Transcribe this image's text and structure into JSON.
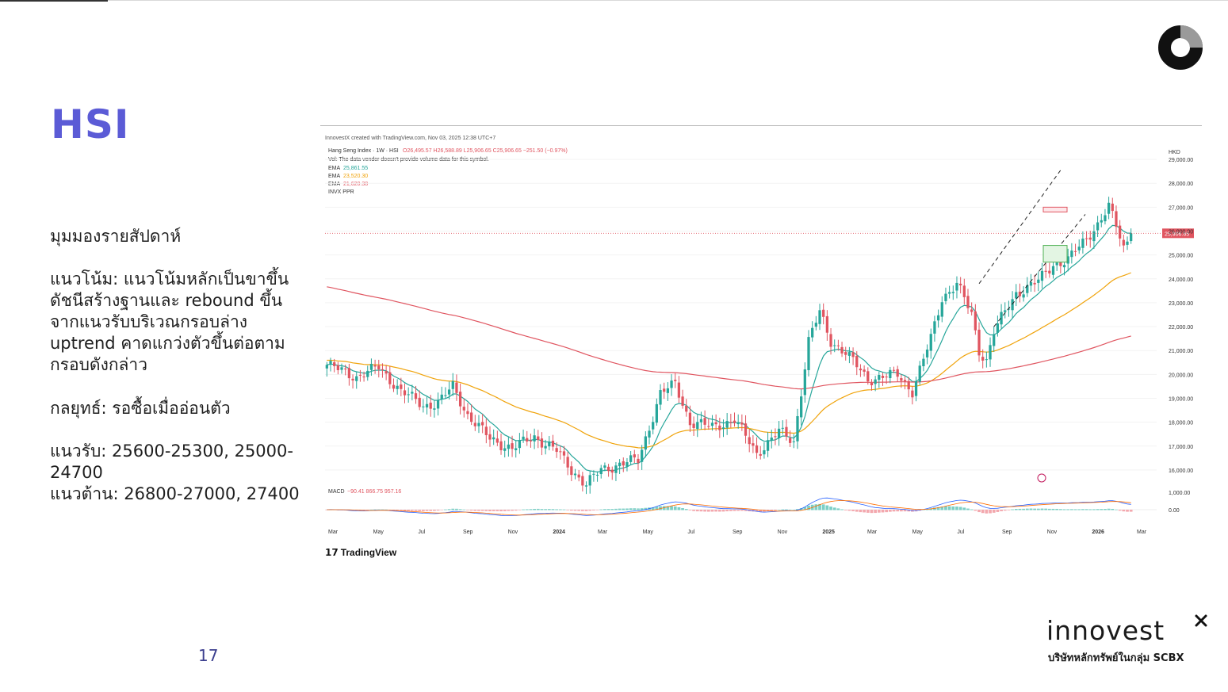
{
  "slide": {
    "title": "HSI",
    "page_number": "17",
    "sections": {
      "heading": "มุมมองรายสัปดาห์",
      "trend": "แนวโน้ม: แนวโน้มหลักเป็นขาขึ้น\nดัชนีสร้างฐานและ rebound ขึ้น\nจากแนวรับบริเวณกรอบล่าง\nuptrend คาดแกว่งตัวขึ้นต่อตาม\nกรอบดังกล่าว",
      "strategy": "กลยุทธ์: รอซื้อเมื่ออ่อนตัว",
      "levels": "แนวรับ: 25600-25300, 25000-\n24700\nแนวต้าน: 26800-27000, 27400"
    },
    "brand": {
      "name": "innovest",
      "tagline": "บริษัทหลักทรัพย์ในกลุ่ม SCBX"
    }
  },
  "chart_data": {
    "type": "candlestick",
    "source_line": "InnovestX created with TradingView.com, Nov 03, 2025 12:38 UTC+7",
    "legend": {
      "symbol_line": "Hang Seng Index · 1W · HSI",
      "ohlc_text": "O26,495.57  H26,588.89  L25,906.65  C25,906.65  −251.50 (−0.97%)",
      "volume_note": "Vol: The data vendor doesn't provide volume data for this symbol.",
      "ema_lines": [
        {
          "label": "EMA",
          "value": "25,861.55",
          "color": "#26a69a"
        },
        {
          "label": "EMA",
          "value": "23,520.30",
          "color": "#f0a30a"
        },
        {
          "label": "EMA",
          "value": "21,620.38",
          "color": "#e05560"
        }
      ],
      "indicator": "INVX PPR"
    },
    "currency": "HKD",
    "last_price_label": "25,906.65",
    "y_ticks": [
      "29,000.00",
      "28,000.00",
      "27,000.00",
      "26,000.00",
      "25,000.00",
      "24,000.00",
      "23,000.00",
      "22,000.00",
      "21,000.00",
      "20,000.00",
      "19,000.00",
      "18,000.00",
      "17,000.00",
      "16,000.00"
    ],
    "ylim": [
      15500,
      29500
    ],
    "x_ticks": [
      "Mar",
      "May",
      "Jul",
      "Sep",
      "Nov",
      "2024",
      "Mar",
      "May",
      "Jul",
      "Sep",
      "Nov",
      "2025",
      "Mar",
      "May",
      "Jul",
      "Sep",
      "Nov",
      "2026",
      "Mar"
    ],
    "macd": {
      "label": "MACD",
      "values_text": "−90.41  866.75  957.16",
      "y_ticks": [
        "1,000.00",
        "0.00"
      ]
    },
    "watermark": "TradingView",
    "colors": {
      "up": "#26a69a",
      "down": "#e05560",
      "ema_fast": "#26a69a",
      "ema_mid": "#f0a30a",
      "ema_slow": "#e05560",
      "channel": "#222222"
    },
    "anchors": [
      [
        0,
        20400
      ],
      [
        8,
        19900
      ],
      [
        14,
        20300
      ],
      [
        20,
        19300
      ],
      [
        26,
        18700
      ],
      [
        30,
        18800
      ],
      [
        34,
        19500
      ],
      [
        38,
        18300
      ],
      [
        44,
        17300
      ],
      [
        50,
        16900
      ],
      [
        56,
        17400
      ],
      [
        62,
        16800
      ],
      [
        66,
        16000
      ],
      [
        70,
        15400
      ],
      [
        74,
        16000
      ],
      [
        80,
        16300
      ],
      [
        84,
        16400
      ],
      [
        90,
        19200
      ],
      [
        94,
        19600
      ],
      [
        98,
        18000
      ],
      [
        104,
        17800
      ],
      [
        110,
        18100
      ],
      [
        116,
        16700
      ],
      [
        122,
        17600
      ],
      [
        126,
        17200
      ],
      [
        130,
        21400
      ],
      [
        133,
        22600
      ],
      [
        136,
        21400
      ],
      [
        140,
        20900
      ],
      [
        146,
        19800
      ],
      [
        150,
        19900
      ],
      [
        154,
        20000
      ],
      [
        158,
        19300
      ],
      [
        163,
        21500
      ],
      [
        166,
        23200
      ],
      [
        170,
        23800
      ],
      [
        174,
        22500
      ],
      [
        176,
        21000
      ],
      [
        178,
        20600
      ],
      [
        180,
        21800
      ],
      [
        186,
        23400
      ],
      [
        192,
        23900
      ],
      [
        196,
        24600
      ],
      [
        200,
        24800
      ],
      [
        204,
        25500
      ],
      [
        208,
        26300
      ],
      [
        211,
        27000
      ],
      [
        213,
        26200
      ],
      [
        215,
        25300
      ],
      [
        217,
        25906
      ]
    ]
  }
}
